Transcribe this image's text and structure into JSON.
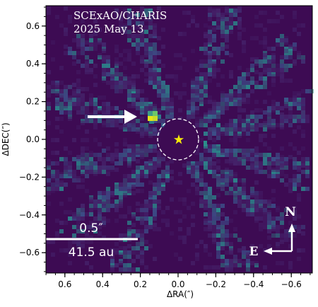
{
  "image": {
    "instrument_label": "SCExAO/CHARIS",
    "date_label": "2025 May 13",
    "x_axis_label": "ΔRA(″)",
    "y_axis_label": "ΔDEC(″)",
    "x_ticks": [
      "0.6",
      "0.4",
      "0.2",
      "0.0",
      "−0.2",
      "−0.4",
      "−0.6"
    ],
    "y_ticks": [
      "0.6",
      "0.4",
      "0.2",
      "0.0",
      "−0.2",
      "−0.4",
      "−0.6"
    ],
    "scale_bar_angle": "0.5″",
    "scale_bar_distance": "41.5 au",
    "compass_north": "N",
    "compass_east": "E",
    "colors": {
      "background": "#3d0b53",
      "speckle_low": "#45226a",
      "speckle_mid": "#3c4f88",
      "speckle_high": "#2b8a8c",
      "companion_bright": "#e8e417",
      "companion_mid": "#6cc76a",
      "star_marker": "#f5e90a",
      "annotation": "#ffffff"
    },
    "icons": {
      "star": "yellow-star-marker",
      "pointer": "white-arrow"
    }
  }
}
